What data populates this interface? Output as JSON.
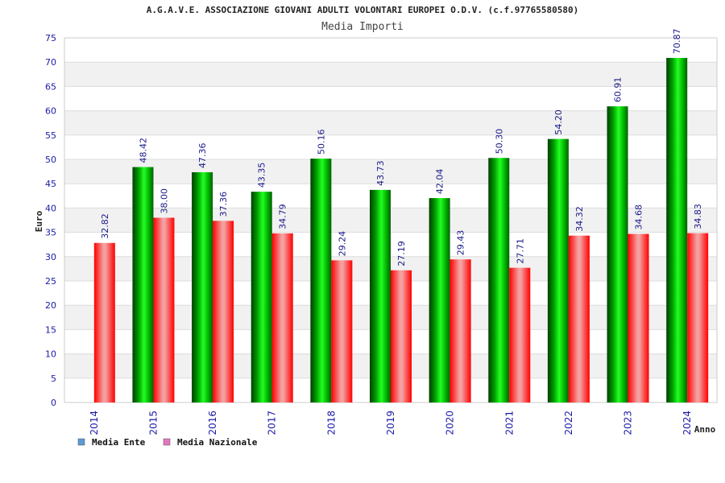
{
  "header": {
    "title": "A.G.A.V.E. ASSOCIAZIONE GIOVANI ADULTI VOLONTARI EUROPEI O.D.V. (c.f.97765580580)",
    "subtitle": "Media Importi"
  },
  "chart_data": {
    "type": "bar",
    "ylabel": "Euro",
    "xlabel": "Anno",
    "ylim": [
      0,
      75
    ],
    "ytick_step": 5,
    "categories": [
      "2014",
      "2015",
      "2016",
      "2017",
      "2018",
      "2019",
      "2020",
      "2021",
      "2022",
      "2023",
      "2024"
    ],
    "series": [
      {
        "name": "Media Ente",
        "color": "#00aa00",
        "values": [
          null,
          48.42,
          47.36,
          43.35,
          50.16,
          43.73,
          42.04,
          50.3,
          54.2,
          60.91,
          70.87
        ],
        "labels": [
          "",
          "48.42",
          "47.36",
          "43.35",
          "50.16",
          "43.73",
          "42.04",
          "50.30",
          "54.20",
          "60.91",
          "70.87"
        ]
      },
      {
        "name": "Media Nazionale",
        "color": "#ee0000",
        "values": [
          32.82,
          38.0,
          37.36,
          34.79,
          29.24,
          27.19,
          29.43,
          27.71,
          34.32,
          34.68,
          34.83
        ],
        "labels": [
          "32.82",
          "38.00",
          "37.36",
          "34.79",
          "29.24",
          "27.19",
          "29.43",
          "27.71",
          "34.32",
          "34.68",
          "34.83"
        ]
      }
    ],
    "legend": {
      "position": "bottom-left",
      "items": [
        {
          "label": "Media Ente",
          "color": "#5b9bd5"
        },
        {
          "label": "Media Nazionale",
          "color": "#e377c2"
        }
      ]
    },
    "grid": true
  }
}
